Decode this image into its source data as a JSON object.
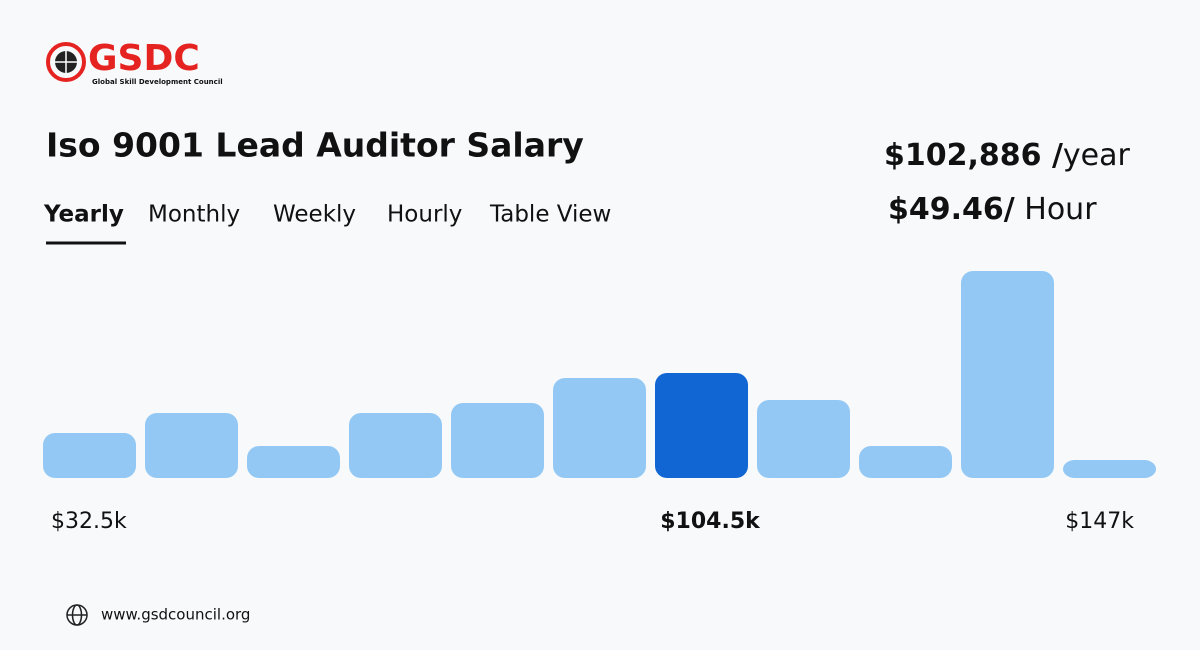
{
  "logo": {
    "name": "GSDC",
    "tagline": "Global Skill Development Council"
  },
  "title": "Iso 9001 Lead Auditor Salary",
  "tabs": [
    "Yearly",
    "Monthly",
    "Weekly",
    "Hourly",
    "Table View"
  ],
  "salary": {
    "yearly_amount": "$102,886 /",
    "yearly_unit": "year",
    "hourly_amount": "$49.46/",
    "hourly_unit": " Hour"
  },
  "chart_data": {
    "type": "bar",
    "values": [
      45,
      65,
      32,
      65,
      75,
      100,
      105,
      78,
      32,
      207,
      18
    ],
    "colors": [
      "#93c8f5",
      "#93c8f5",
      "#93c8f5",
      "#93c8f5",
      "#93c8f5",
      "#93c8f5",
      "#1166d4",
      "#93c8f5",
      "#93c8f5",
      "#93c8f5",
      "#93c8f5"
    ],
    "ylim": [
      0,
      210
    ],
    "min_label": "$32.5k",
    "median_label": "$104.5k",
    "max_label": "$147k"
  },
  "footer": {
    "url": "www.gsdcouncil.org"
  }
}
